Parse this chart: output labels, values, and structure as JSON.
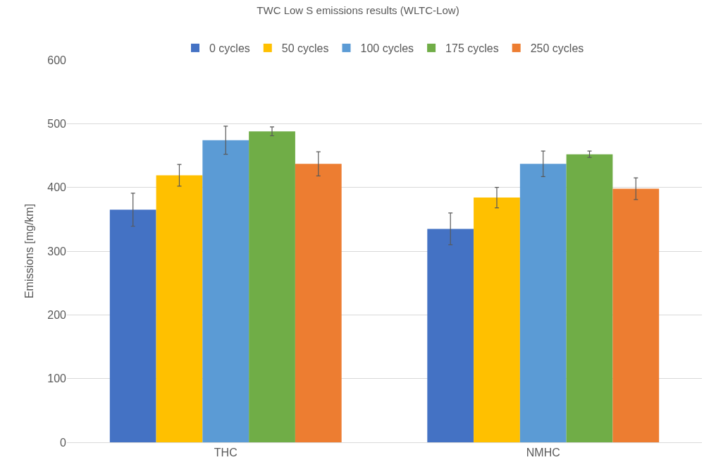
{
  "chart_data": {
    "type": "bar",
    "title": "TWC Low S emissions results (WLTC-Low)",
    "ylabel": "Emissions [mg/km]",
    "categories": [
      "THC",
      "NMHC"
    ],
    "series": [
      {
        "name": "0 cycles",
        "color": "#4472c4",
        "values": [
          365,
          335
        ],
        "errors": [
          26,
          25
        ]
      },
      {
        "name": "50 cycles",
        "color": "#ffc000",
        "values": [
          419,
          384
        ],
        "errors": [
          17,
          16
        ]
      },
      {
        "name": "100 cycles",
        "color": "#5b9bd5",
        "values": [
          474,
          437
        ],
        "errors": [
          22,
          20
        ]
      },
      {
        "name": "175 cycles",
        "color": "#70ad47",
        "values": [
          488,
          452
        ],
        "errors": [
          7,
          5
        ]
      },
      {
        "name": "250 cycles",
        "color": "#ed7d31",
        "values": [
          437,
          398
        ],
        "errors": [
          19,
          17
        ]
      }
    ],
    "ylim": [
      0,
      600
    ],
    "yticks": [
      0,
      100,
      200,
      300,
      400,
      500,
      600
    ],
    "grid": "y",
    "legend": "top"
  }
}
